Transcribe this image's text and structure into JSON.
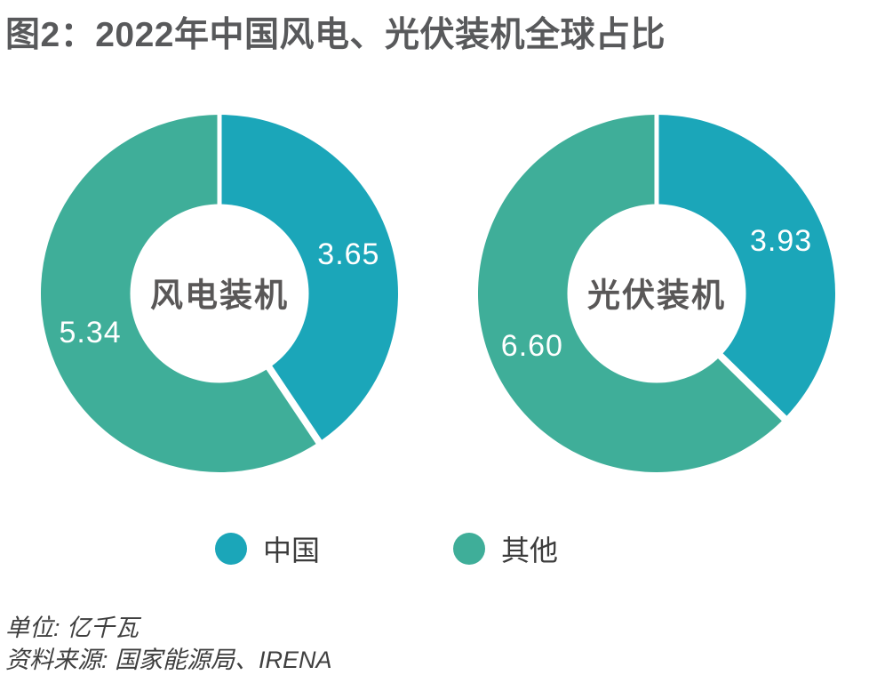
{
  "figure": {
    "title": "图2：2022年中国风电、光伏装机全球占比"
  },
  "colors": {
    "china": "#1BA6B9",
    "others": "#3FAE99",
    "title_gray": "#58595b",
    "center_label_gray": "#595757",
    "value_label_white": "#ffffff"
  },
  "chart_data": [
    {
      "type": "pie",
      "subtype": "donut",
      "title": "风电装机",
      "categories": [
        "中国",
        "其他"
      ],
      "values": [
        3.65,
        5.34
      ],
      "value_labels": [
        "3.65",
        "5.34"
      ],
      "start_angle": "12-oclock",
      "direction": "clockwise",
      "legend_position": "bottom",
      "unit": "亿千瓦"
    },
    {
      "type": "pie",
      "subtype": "donut",
      "title": "光伏装机",
      "categories": [
        "中国",
        "其他"
      ],
      "values": [
        3.93,
        6.6
      ],
      "value_labels": [
        "3.93",
        "6.60"
      ],
      "start_angle": "12-oclock",
      "direction": "clockwise",
      "legend_position": "bottom",
      "unit": "亿千瓦"
    }
  ],
  "legend": {
    "items": [
      {
        "label": "中国",
        "color": "#1BA6B9"
      },
      {
        "label": "其他",
        "color": "#3FAE99"
      }
    ]
  },
  "footer": {
    "unit_line": "单位: 亿千瓦",
    "source_line": "资料来源: 国家能源局、IRENA"
  }
}
